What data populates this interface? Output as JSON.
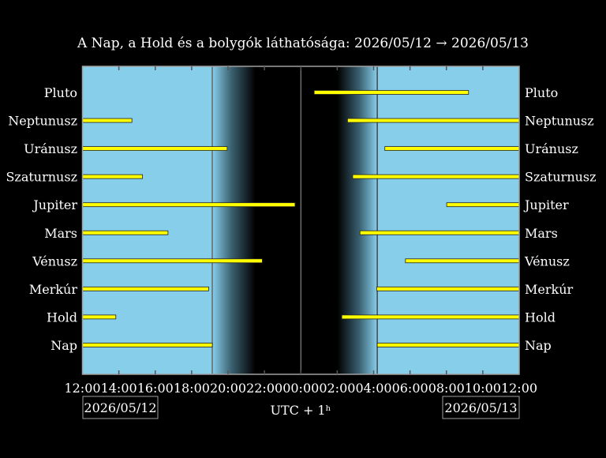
{
  "chart_data": {
    "type": "bar",
    "title": "A Nap, a Hold és a bolygók láthatósága: 2026/05/12 → 2026/05/13",
    "xlabel": "UTC + 1ʰ",
    "x_range": [
      "2026/05/12 12:00",
      "2026/05/13 12:00"
    ],
    "x_ticks": [
      "12:00",
      "14:00",
      "16:00",
      "18:00",
      "20:00",
      "22:00",
      "00:00",
      "02:00",
      "04:00",
      "06:00",
      "08:00",
      "10:00",
      "12:00"
    ],
    "date_labels": {
      "start": "2026/05/12",
      "end": "2026/05/13"
    },
    "colors": {
      "day": "#87ceeb",
      "night": "#000000",
      "bar": "#ffff00",
      "frame": "#a0a0a0"
    },
    "twilight": {
      "sunset": "2026/05/12 19:08",
      "dark_start": "2026/05/12 21:30",
      "dark_end": "2026/05/13 02:00",
      "sunrise": "2026/05/13 04:12"
    },
    "bodies": [
      {
        "name": "Pluto",
        "segments": [
          [
            "2026/05/13 00:44",
            "2026/05/13 09:13"
          ]
        ]
      },
      {
        "name": "Neptunusz",
        "segments": [
          [
            "2026/05/12 12:00",
            "2026/05/12 14:43"
          ],
          [
            "2026/05/13 02:34",
            "2026/05/13 12:00"
          ]
        ]
      },
      {
        "name": "Uránusz",
        "segments": [
          [
            "2026/05/12 12:00",
            "2026/05/12 19:57"
          ],
          [
            "2026/05/13 04:37",
            "2026/05/13 12:00"
          ]
        ]
      },
      {
        "name": "Szaturnusz",
        "segments": [
          [
            "2026/05/12 12:00",
            "2026/05/12 15:18"
          ],
          [
            "2026/05/13 02:51",
            "2026/05/13 12:00"
          ]
        ]
      },
      {
        "name": "Jupiter",
        "segments": [
          [
            "2026/05/12 12:00",
            "2026/05/12 23:41"
          ],
          [
            "2026/05/13 08:01",
            "2026/05/13 12:00"
          ]
        ]
      },
      {
        "name": "Mars",
        "segments": [
          [
            "2026/05/12 12:00",
            "2026/05/12 16:42"
          ],
          [
            "2026/05/13 03:15",
            "2026/05/13 12:00"
          ]
        ]
      },
      {
        "name": "Vénusz",
        "segments": [
          [
            "2026/05/12 12:00",
            "2026/05/12 21:53"
          ],
          [
            "2026/05/13 05:45",
            "2026/05/13 12:00"
          ]
        ]
      },
      {
        "name": "Merkúr",
        "segments": [
          [
            "2026/05/12 12:00",
            "2026/05/12 18:56"
          ],
          [
            "2026/05/13 04:10",
            "2026/05/13 12:00"
          ]
        ]
      },
      {
        "name": "Hold",
        "segments": [
          [
            "2026/05/12 12:00",
            "2026/05/12 13:50"
          ],
          [
            "2026/05/13 02:15",
            "2026/05/13 12:00"
          ]
        ]
      },
      {
        "name": "Nap",
        "segments": [
          [
            "2026/05/12 12:00",
            "2026/05/12 19:08"
          ],
          [
            "2026/05/13 04:12",
            "2026/05/13 12:00"
          ]
        ]
      }
    ]
  }
}
